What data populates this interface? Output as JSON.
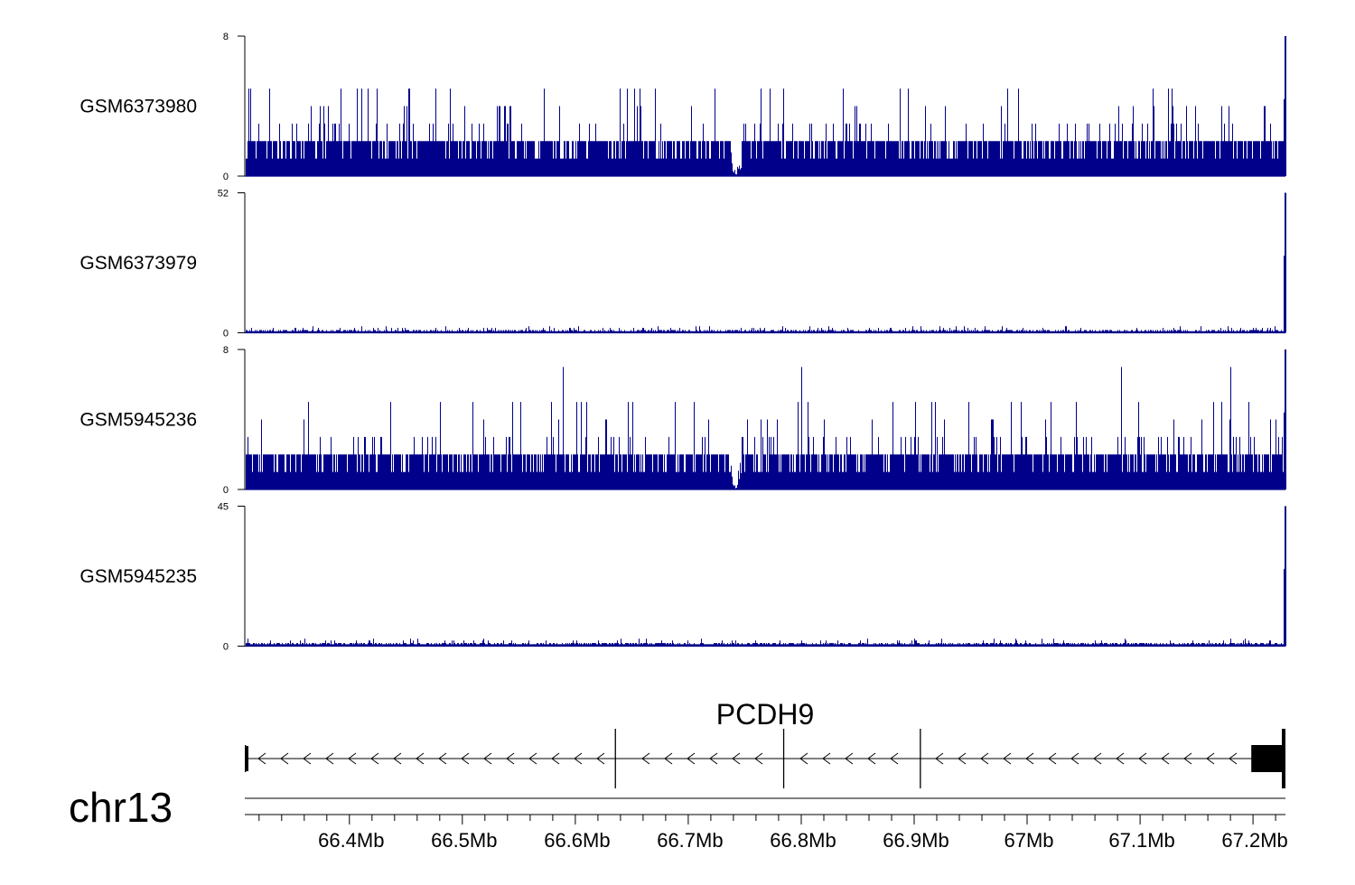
{
  "chart_data": {
    "type": "area",
    "color": "#00008B",
    "x_range_mb": [
      66.3074,
      67.2287
    ],
    "tracks": [
      {
        "name": "GSM6373980",
        "ymin": "0",
        "ymax": "8",
        "ylim": [
          0,
          8
        ],
        "profile": "dense",
        "baseline": 1,
        "band": 2,
        "spike_levels": [
          3,
          4,
          5
        ],
        "dip_mb": 66.742,
        "end_spike": 8
      },
      {
        "name": "GSM6373979",
        "ymin": "0",
        "ymax": "52",
        "ylim": [
          0,
          52
        ],
        "profile": "sparse",
        "baseline": 1,
        "band": 2,
        "spike_levels": [
          3,
          4
        ],
        "dip_mb": null,
        "end_spike": 52
      },
      {
        "name": "GSM5945236",
        "ymin": "0",
        "ymax": "8",
        "ylim": [
          0,
          8
        ],
        "profile": "dense",
        "baseline": 1,
        "band": 2,
        "spike_levels": [
          3,
          4,
          5,
          7
        ],
        "dip_mb": 66.742,
        "end_spike": 8
      },
      {
        "name": "GSM5945235",
        "ymin": "0",
        "ymax": "45",
        "ylim": [
          0,
          45
        ],
        "profile": "sparse",
        "baseline": 1,
        "band": 2,
        "spike_levels": [
          3,
          4
        ],
        "dip_mb": null,
        "end_spike": 45
      }
    ],
    "gene": {
      "name": "PCDH9",
      "strand": "-",
      "start_mb": 66.3074,
      "end_mb": 67.2287,
      "exons_mb": [
        [
          66.3074,
          66.3084
        ],
        [
          66.635,
          66.636
        ],
        [
          66.784,
          66.785
        ],
        [
          66.905,
          66.906
        ],
        [
          67.1985,
          67.2265
        ],
        [
          67.2265,
          67.2287
        ]
      ]
    },
    "chromosome": "chr13",
    "xticks": [
      {
        "pos": 66.4,
        "label": "66.4Mb"
      },
      {
        "pos": 66.5,
        "label": "66.5Mb"
      },
      {
        "pos": 66.6,
        "label": "66.6Mb"
      },
      {
        "pos": 66.7,
        "label": "66.7Mb"
      },
      {
        "pos": 66.8,
        "label": "66.8Mb"
      },
      {
        "pos": 66.9,
        "label": "66.9Mb"
      },
      {
        "pos": 67.0,
        "label": "67Mb"
      },
      {
        "pos": 67.1,
        "label": "67.1Mb"
      },
      {
        "pos": 67.2,
        "label": "67.2Mb"
      }
    ],
    "minor_tick_step_mb": 0.02
  }
}
